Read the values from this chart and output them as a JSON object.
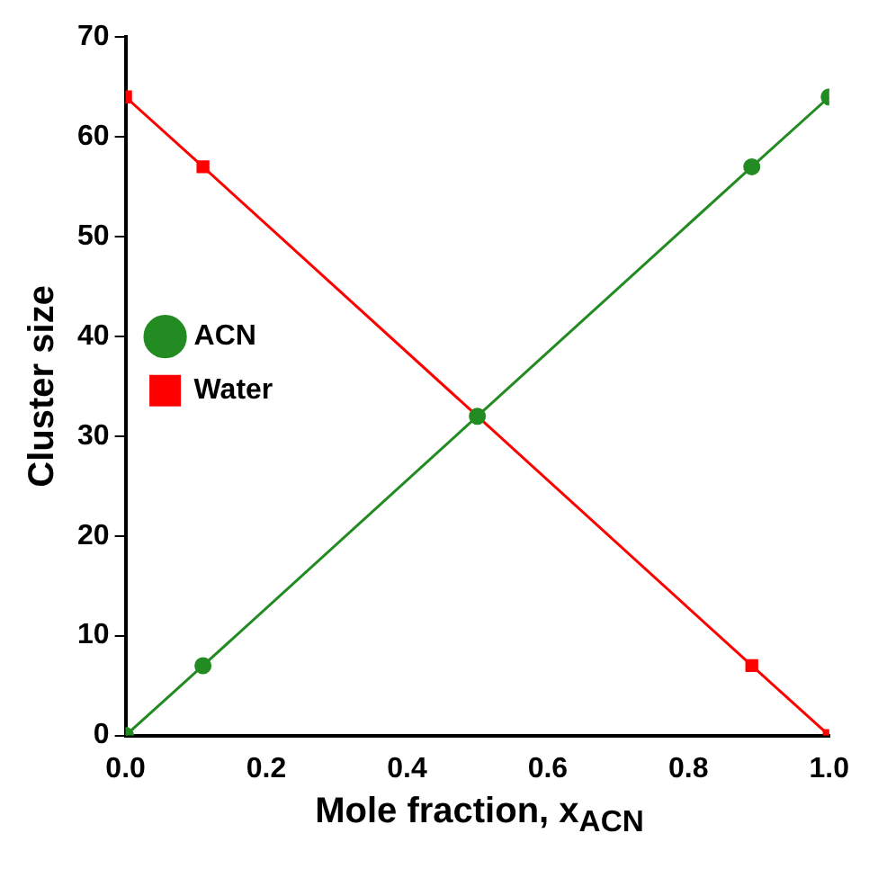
{
  "chart_data": {
    "type": "line",
    "xlabel": "Mole fraction, x$_{ACN}$",
    "ylabel": "Cluster size",
    "xlim": [
      0,
      1
    ],
    "xticks": [
      {
        "value": 0,
        "label": "0.0"
      },
      {
        "value": 0.2,
        "label": "0.2"
      },
      {
        "value": 0.4,
        "label": "0.4"
      },
      {
        "value": 0.6,
        "label": "0.6"
      },
      {
        "value": 0.8,
        "label": "0.8"
      },
      {
        "value": 1,
        "label": "1.0"
      }
    ],
    "ylim": [
      0,
      70
    ],
    "yticks": [
      0,
      10,
      20,
      30,
      40,
      50,
      60,
      70
    ],
    "x": [
      0,
      0.11,
      0.5,
      0.89,
      1
    ],
    "series": [
      {
        "name": "ACN",
        "color": "#228b22",
        "marker": "circle",
        "values": [
          0,
          7,
          32,
          57,
          64
        ]
      },
      {
        "name": "Water",
        "color": "#ff0000",
        "marker": "square",
        "values": [
          64,
          57,
          32,
          7,
          0
        ]
      }
    ],
    "grid": false,
    "legend": "top",
    "line_style": "solid"
  }
}
